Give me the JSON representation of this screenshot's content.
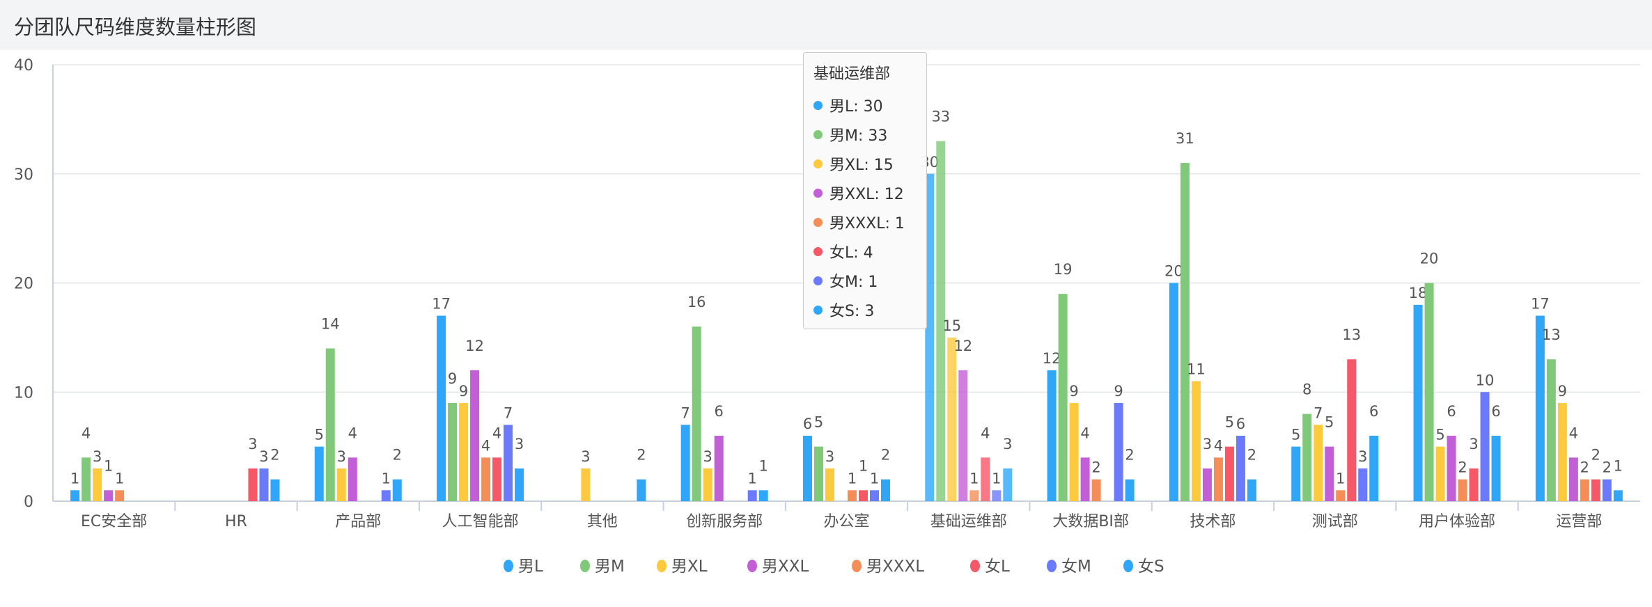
{
  "title": "分团队尺码维度数量柱形图",
  "chart_data": {
    "type": "bar",
    "title": "分团队尺码维度数量柱形图",
    "categories": [
      "EC安全部",
      "HR",
      "产品部",
      "人工智能部",
      "其他",
      "创新服务部",
      "办公室",
      "基础运维部",
      "大数据BI部",
      "技术部",
      "测试部",
      "用户体验部",
      "运营部"
    ],
    "ylim": [
      0,
      40
    ],
    "yticks": [
      "0",
      "10",
      "20",
      "30",
      "40"
    ],
    "legend_position": "bottom",
    "grid": true,
    "series": [
      {
        "name": "男L",
        "color": "#2fa6f8",
        "values": [
          1,
          0,
          5,
          17,
          0,
          7,
          6,
          30,
          12,
          20,
          5,
          18,
          17
        ]
      },
      {
        "name": "男M",
        "color": "#80c97a",
        "values": [
          4,
          0,
          14,
          9,
          0,
          16,
          5,
          33,
          19,
          31,
          8,
          20,
          13
        ]
      },
      {
        "name": "男XL",
        "color": "#fdc93d",
        "values": [
          3,
          0,
          3,
          9,
          3,
          3,
          3,
          15,
          9,
          11,
          7,
          5,
          9
        ]
      },
      {
        "name": "男XXL",
        "color": "#c35fd6",
        "values": [
          1,
          0,
          4,
          12,
          0,
          6,
          0,
          12,
          4,
          3,
          5,
          6,
          4
        ]
      },
      {
        "name": "男XXXL",
        "color": "#f48d58",
        "values": [
          1,
          0,
          0,
          4,
          0,
          0,
          1,
          1,
          2,
          4,
          1,
          2,
          2
        ]
      },
      {
        "name": "女L",
        "color": "#f65867",
        "values": [
          0,
          3,
          0,
          4,
          0,
          0,
          1,
          4,
          0,
          5,
          13,
          3,
          2
        ]
      },
      {
        "name": "女M",
        "color": "#6b7afa",
        "values": [
          0,
          3,
          1,
          7,
          0,
          1,
          1,
          1,
          9,
          6,
          3,
          10,
          2
        ]
      },
      {
        "name": "女S",
        "color": "#2fa6f8",
        "values": [
          0,
          2,
          2,
          3,
          2,
          1,
          2,
          3,
          2,
          2,
          6,
          6,
          1
        ]
      }
    ]
  },
  "tooltip": {
    "category": "基础运维部",
    "rows": [
      "男L: 30",
      "男M: 33",
      "男XL: 15",
      "男XXL: 12",
      "男XXXL: 1",
      "女L: 4",
      "女M: 1",
      "女S: 3"
    ]
  }
}
